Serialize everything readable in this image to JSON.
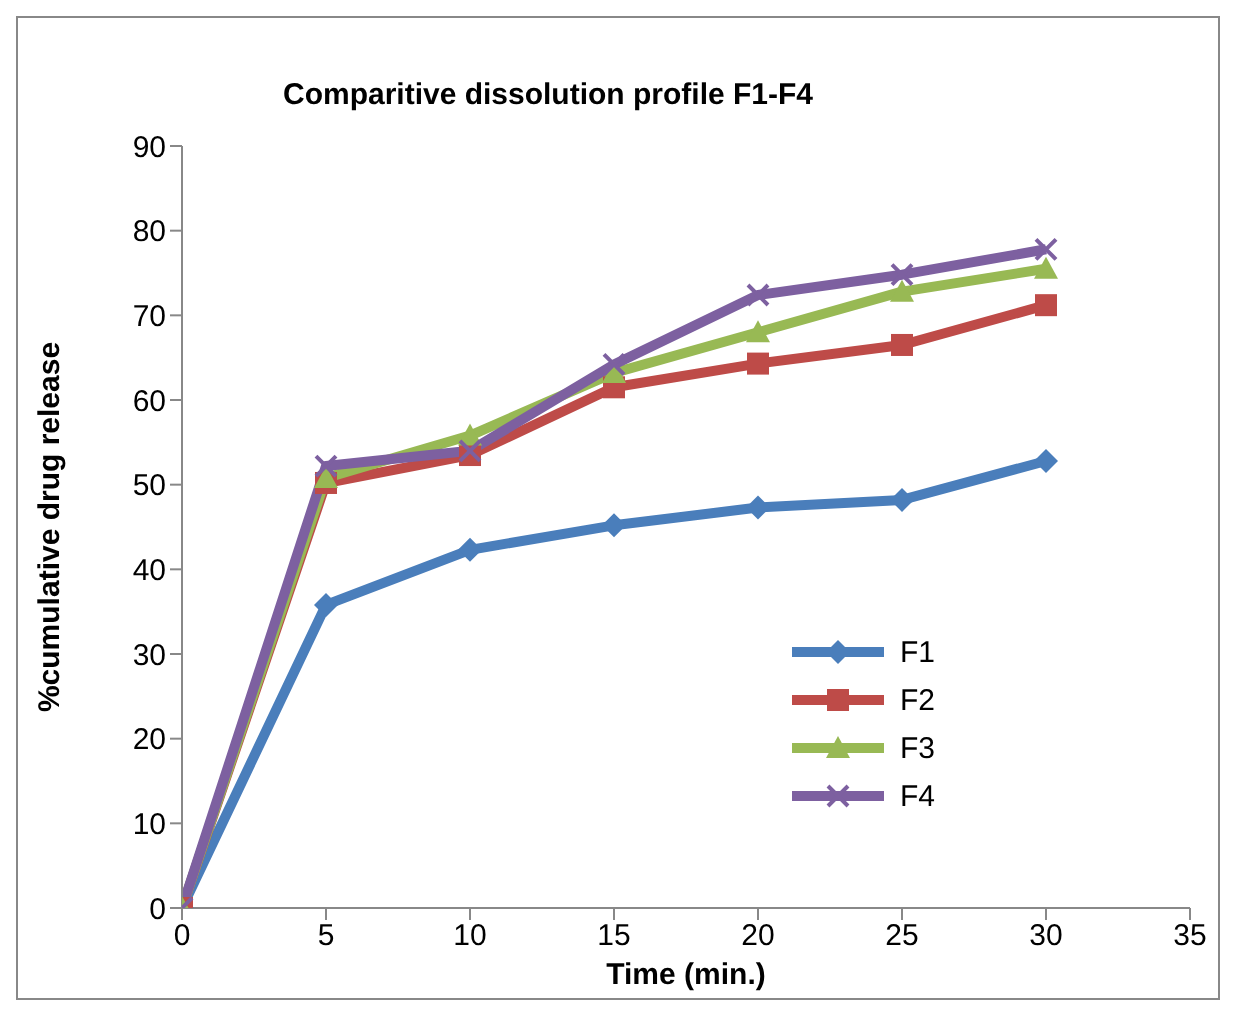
{
  "chart_data": {
    "type": "line",
    "title": "Comparitive dissolution profile F1-F4",
    "xlabel": "Time (min.)",
    "ylabel": "%cumulative drug release",
    "x": [
      0,
      5,
      10,
      15,
      20,
      25,
      30
    ],
    "series": [
      {
        "name": "F1",
        "color": "#4a7ebb",
        "marker": "diamond",
        "values": [
          0,
          35.8,
          42.3,
          45.2,
          47.3,
          48.2,
          52.8
        ]
      },
      {
        "name": "F2",
        "color": "#be4b48",
        "marker": "square",
        "values": [
          0,
          50.2,
          53.5,
          61.5,
          64.3,
          66.5,
          71.2
        ]
      },
      {
        "name": "F3",
        "color": "#98b954",
        "marker": "triangle",
        "values": [
          0,
          50.8,
          55.8,
          63.2,
          68,
          72.8,
          75.5
        ]
      },
      {
        "name": "F4",
        "color": "#7d60a0",
        "marker": "cross",
        "values": [
          0,
          52.2,
          54,
          64.2,
          72.4,
          74.8,
          77.8
        ]
      }
    ],
    "xlim": [
      0,
      35
    ],
    "xticks": [
      0,
      5,
      10,
      15,
      20,
      25,
      30,
      35
    ],
    "ylim": [
      0,
      90
    ],
    "yticks": [
      0,
      10,
      20,
      30,
      40,
      50,
      60,
      70,
      80,
      90
    ],
    "grid": false,
    "legend": "right",
    "line_style": "solid"
  }
}
